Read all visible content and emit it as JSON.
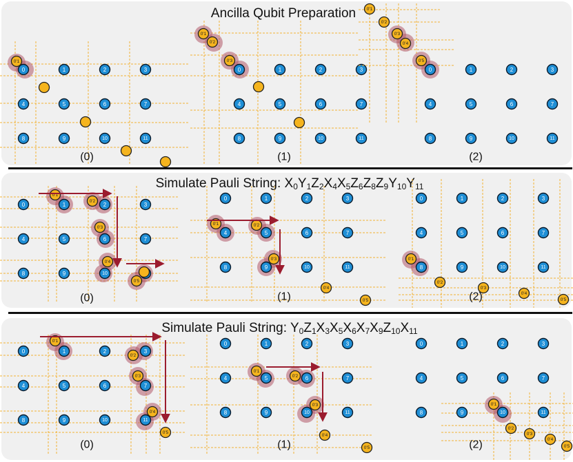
{
  "panels": [
    {
      "title": "Ancilla Qubit Preparation",
      "title_parts": [],
      "subfigures": [
        {
          "caption": "(0)",
          "data_qubits": [
            "0",
            "1",
            "2",
            "3",
            "4",
            "5",
            "6",
            "7",
            "8",
            "9",
            "10",
            "11"
          ],
          "ancilla_labels": [
            "0'1"
          ],
          "ancilla_plain_count": 4,
          "highlighted_data": [
            "0"
          ],
          "arrows": 0
        },
        {
          "caption": "(1)",
          "data_qubits": [
            "0",
            "1",
            "2",
            "3",
            "4",
            "5",
            "6",
            "7",
            "8",
            "9",
            "10",
            "11"
          ],
          "ancilla_labels": [
            "0'1",
            "0'2",
            "0'3"
          ],
          "ancilla_plain_count": 2,
          "highlighted_data": [
            "0"
          ],
          "arrows": 0
        },
        {
          "caption": "(2)",
          "data_qubits": [
            "0",
            "1",
            "2",
            "3",
            "4",
            "5",
            "6",
            "7",
            "8",
            "9",
            "10",
            "11"
          ],
          "ancilla_labels": [
            "0'1",
            "0'2",
            "0'3",
            "0'4",
            "0'5"
          ],
          "ancilla_plain_count": 0,
          "highlighted_data": [
            "0"
          ],
          "arrows": 0
        }
      ]
    },
    {
      "title": "Simulate Pauli String: ",
      "title_parts": [
        {
          "op": "X",
          "idx": "0"
        },
        {
          "op": "Y",
          "idx": "1"
        },
        {
          "op": "Z",
          "idx": "2"
        },
        {
          "op": "X",
          "idx": "4"
        },
        {
          "op": "X",
          "idx": "5"
        },
        {
          "op": "Z",
          "idx": "6"
        },
        {
          "op": "Z",
          "idx": "8"
        },
        {
          "op": "Z",
          "idx": "9"
        },
        {
          "op": "Y",
          "idx": "10"
        },
        {
          "op": "Y",
          "idx": "11"
        }
      ],
      "subfigures": [
        {
          "caption": "(0)",
          "data_qubits": [
            "0",
            "1",
            "2",
            "3",
            "4",
            "5",
            "6",
            "7",
            "8",
            "9",
            "10",
            "11"
          ],
          "ancilla_labels": [
            "0'1",
            "0'2",
            "0'3",
            "0'4",
            "0'5"
          ],
          "highlighted_data": [
            "1",
            "2",
            "6",
            "10",
            "11"
          ]
        },
        {
          "caption": "(1)",
          "data_qubits": [
            "0",
            "1",
            "2",
            "3",
            "4",
            "5",
            "6",
            "7",
            "8",
            "9",
            "10",
            "11"
          ],
          "ancilla_labels": [
            "0'1",
            "0'2",
            "0'3",
            "0'4",
            "0'5"
          ],
          "highlighted_data": [
            "4",
            "5",
            "9"
          ]
        },
        {
          "caption": "(2)",
          "data_qubits": [
            "0",
            "1",
            "2",
            "3",
            "4",
            "5",
            "6",
            "7",
            "8",
            "9",
            "10",
            "11"
          ],
          "ancilla_labels": [
            "0'1",
            "0'2",
            "0'3",
            "0'4",
            "0'5"
          ],
          "highlighted_data": [
            "8"
          ]
        }
      ]
    },
    {
      "title": "Simulate Pauli String: ",
      "title_parts": [
        {
          "op": "Y",
          "idx": "0"
        },
        {
          "op": "Z",
          "idx": "1"
        },
        {
          "op": "X",
          "idx": "3"
        },
        {
          "op": "X",
          "idx": "5"
        },
        {
          "op": "X",
          "idx": "6"
        },
        {
          "op": "X",
          "idx": "7"
        },
        {
          "op": "X",
          "idx": "9"
        },
        {
          "op": "Z",
          "idx": "10"
        },
        {
          "op": "X",
          "idx": "11"
        }
      ],
      "subfigures": [
        {
          "caption": "(0)",
          "data_qubits": [
            "0",
            "1",
            "2",
            "3",
            "4",
            "5",
            "6",
            "7",
            "8",
            "9",
            "10",
            "11"
          ],
          "ancilla_labels": [
            "0'1",
            "0'2",
            "0'3",
            "0'4",
            "0'5"
          ],
          "highlighted_data": [
            "1",
            "3",
            "7",
            "11"
          ]
        },
        {
          "caption": "(1)",
          "data_qubits": [
            "0",
            "1",
            "2",
            "3",
            "4",
            "5",
            "6",
            "7",
            "8",
            "9",
            "10",
            "11"
          ],
          "ancilla_labels": [
            "0'1",
            "0'2",
            "0'3",
            "0'4",
            "0'5"
          ],
          "highlighted_data": [
            "5",
            "6",
            "10"
          ]
        },
        {
          "caption": "(2)",
          "data_qubits": [
            "0",
            "1",
            "2",
            "3",
            "4",
            "5",
            "6",
            "7",
            "8",
            "9",
            "10",
            "11"
          ],
          "ancilla_labels": [
            "0'1",
            "0'2",
            "0'3",
            "0'4",
            "0'5"
          ],
          "highlighted_data": [
            "10"
          ]
        }
      ]
    }
  ],
  "colors": {
    "panel_bg": "#f0f0f0",
    "data_qubit": "#1f8fd6",
    "ancilla": "#f5b41e",
    "highlight": "#b25a6a",
    "arrow": "#9b1c2e",
    "grid": "#f2b233"
  }
}
